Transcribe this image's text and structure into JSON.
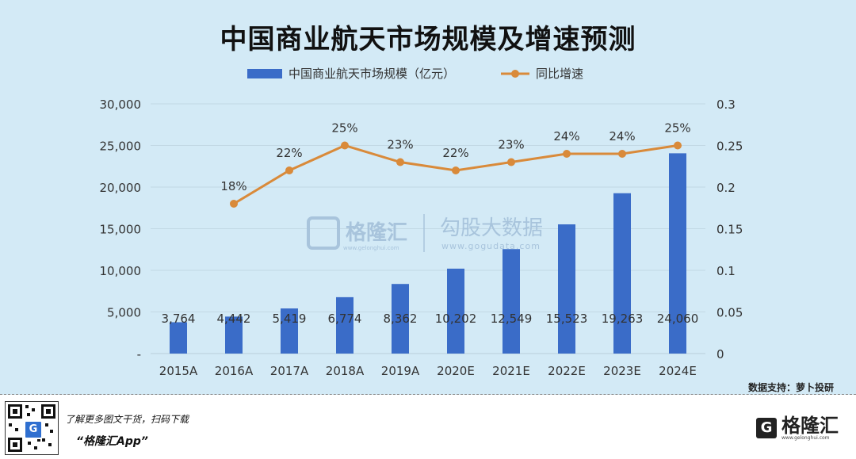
{
  "header": {
    "title": "中国商业航天市场规模及增速预测"
  },
  "watermark": {
    "brand": "格隆汇",
    "brand_sub": "www.gelonghui.com",
    "partner": "勾股大数据",
    "partner_url": "www.gogudata.com"
  },
  "source_note": "数据支持：萝卜投研",
  "footer": {
    "promo": "了解更多图文干货，扫码下载",
    "app_name": "“格隆汇App”",
    "logo_text": "格隆汇",
    "logo_sub": "www.gelonghui.com"
  },
  "colors": {
    "bar": "#3a6cc8",
    "line": "#d98a3a",
    "background": "#d3eaf6"
  },
  "chart_data": {
    "type": "bar+line",
    "categories": [
      "2015A",
      "2016A",
      "2017A",
      "2018A",
      "2019A",
      "2020E",
      "2021E",
      "2022E",
      "2023E",
      "2024E"
    ],
    "series": [
      {
        "name": "中国商业航天市场规模（亿元）",
        "type": "bar",
        "axis": "left",
        "values": [
          3764,
          4442,
          5419,
          6774,
          8362,
          10202,
          12549,
          15523,
          19263,
          24060
        ],
        "labels": [
          "3,764",
          "4,442",
          "5,419",
          "6,774",
          "8,362",
          "10,202",
          "12,549",
          "15,523",
          "19,263",
          "24,060"
        ]
      },
      {
        "name": "同比增速",
        "type": "line",
        "axis": "right",
        "values": [
          null,
          0.18,
          0.22,
          0.25,
          0.23,
          0.22,
          0.23,
          0.24,
          0.24,
          0.25
        ],
        "labels": [
          "",
          "18%",
          "22%",
          "25%",
          "23%",
          "22%",
          "23%",
          "24%",
          "24%",
          "25%"
        ]
      }
    ],
    "y_left": {
      "ylim": [
        0,
        30000
      ],
      "ticks": [
        0,
        5000,
        10000,
        15000,
        20000,
        25000,
        30000
      ],
      "tick_labels": [
        "-",
        "5,000",
        "10,000",
        "15,000",
        "20,000",
        "25,000",
        "30,000"
      ]
    },
    "y_right": {
      "ylim": [
        0,
        0.3
      ],
      "ticks": [
        0,
        0.05,
        0.1,
        0.15,
        0.2,
        0.25,
        0.3
      ],
      "tick_labels": [
        "0",
        "0.05",
        "0.1",
        "0.15",
        "0.2",
        "0.25",
        "0.3"
      ]
    },
    "grid": true,
    "legend": "top-center"
  }
}
